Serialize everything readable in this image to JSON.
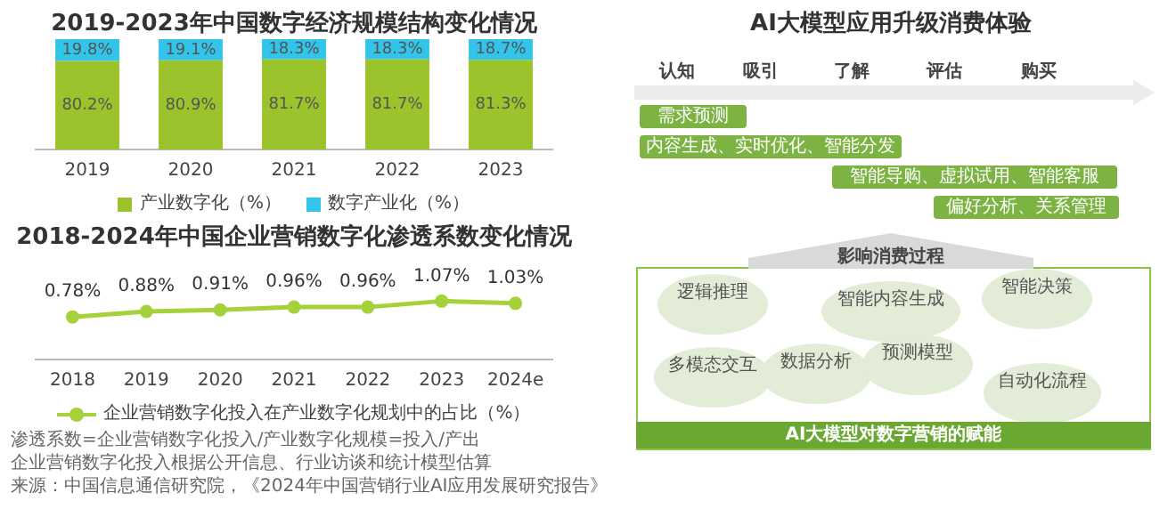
{
  "chart_data": [
    {
      "type": "bar",
      "title": "2019-2023年中国数字经济规模结构变化情况",
      "categories": [
        "2019",
        "2020",
        "2021",
        "2022",
        "2023"
      ],
      "stacked": true,
      "legend": "bottom",
      "series": [
        {
          "name": "产业数字化（%）",
          "color": "#9bc32b",
          "values": [
            80.2,
            80.9,
            81.7,
            81.7,
            81.3
          ],
          "value_labels": [
            "80.2%",
            "80.9%",
            "81.7%",
            "81.7%",
            "81.3%"
          ]
        },
        {
          "name": "数字产业化（%）",
          "color": "#33c4ea",
          "values": [
            19.8,
            19.1,
            18.3,
            18.3,
            18.7
          ],
          "value_labels": [
            "19.8%",
            "19.1%",
            "18.3%",
            "18.3%",
            "18.7%"
          ]
        }
      ]
    },
    {
      "type": "line",
      "title": "2018-2024年中国企业营销数字化渗透系数变化情况",
      "categories": [
        "2018",
        "2019",
        "2020",
        "2021",
        "2022",
        "2023",
        "2024e"
      ],
      "legend": "bottom",
      "marker": "circle",
      "series": [
        {
          "name": "企业营销数字化投入在产业数字化规划中的占比（%）",
          "color": "#a5d13a",
          "values": [
            0.78,
            0.88,
            0.91,
            0.96,
            0.96,
            1.07,
            1.03
          ],
          "value_labels": [
            "0.78%",
            "0.88%",
            "0.91%",
            "0.96%",
            "0.96%",
            "1.07%",
            "1.03%"
          ]
        }
      ],
      "annotations": [
        "渗透系数=企业营销数字化投入/产业数字化规模=投入/产出",
        "企业营销数字化投入根据公开信息、行业访谈和统计模型估算",
        "来源：中国信息通信研究院，《2024年中国营销行业AI应用发展研究报告》"
      ]
    },
    {
      "type": "other",
      "title": "AI大模型应用升级消费体验",
      "annotations": [
        "认知",
        "吸引",
        "了解",
        "评估",
        "购买",
        "需求预测",
        "内容生成、实时优化、智能分发",
        "智能导购、虚拟试用、智能客服",
        "偏好分析、关系管理",
        "影响消费过程",
        "逻辑推理",
        "智能内容生成",
        "智能决策",
        "多模态交互",
        "数据分析",
        "预测模型",
        "自动化流程",
        "AI大模型对数字营销的赋能"
      ]
    }
  ]
}
